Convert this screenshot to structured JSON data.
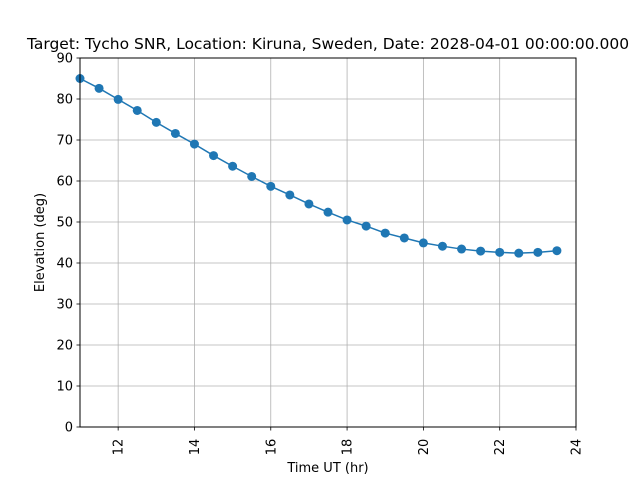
{
  "chart_data": {
    "type": "line",
    "title": "Target: Tycho SNR,  Location: Kiruna, Sweden, Date: 2028-04-01 00:00:00.000",
    "xlabel": "Time UT (hr)",
    "ylabel": "Elevation (deg)",
    "xlim": [
      11,
      24
    ],
    "ylim": [
      0,
      90
    ],
    "xticks": [
      12,
      14,
      16,
      18,
      20,
      22,
      24
    ],
    "yticks": [
      0,
      10,
      20,
      30,
      40,
      50,
      60,
      70,
      80,
      90
    ],
    "grid": true,
    "color": "#1f77b4",
    "series": [
      {
        "x": [
          11,
          11.5,
          12,
          12.5,
          13,
          13.5,
          14,
          14.5,
          15,
          15.5,
          16,
          16.5,
          17,
          17.5,
          18,
          18.5,
          19,
          19.5,
          20,
          20.5,
          21,
          21.5,
          22,
          22.5,
          23,
          23.5
        ],
        "y": [
          85.0,
          82.6,
          79.9,
          77.2,
          74.3,
          71.6,
          69.0,
          66.2,
          63.6,
          61.1,
          58.7,
          56.6,
          54.4,
          52.4,
          50.5,
          49.0,
          47.3,
          46.1,
          44.9,
          44.1,
          43.4,
          42.9,
          42.6,
          42.4,
          42.6,
          43.0
        ]
      }
    ]
  }
}
